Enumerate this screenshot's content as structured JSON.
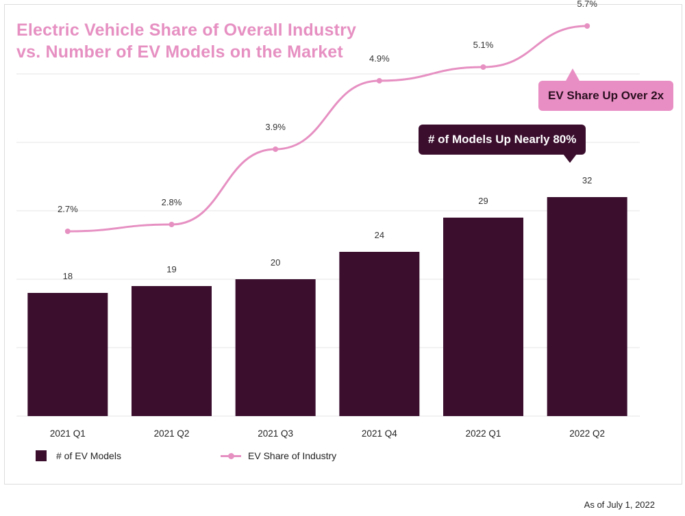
{
  "title": {
    "line1": "Electric Vehicle Share of Overall Industry",
    "line2": "vs. Number of EV Models on the Market"
  },
  "callouts": {
    "share": "EV Share Up Over 2x",
    "models": "# of Models Up Nearly 80%"
  },
  "legend": {
    "bars": "# of EV Models",
    "line": "EV Share of Industry"
  },
  "footnote": "As of July 1, 2022",
  "colors": {
    "bar": "#3b0e2e",
    "line": "#e690c2",
    "title": "#e690c2",
    "grid": "#e6e6e6"
  },
  "chart_data": {
    "type": "bar",
    "categories": [
      "2021 Q1",
      "2021 Q2",
      "2021 Q3",
      "2021 Q4",
      "2022 Q1",
      "2022 Q2"
    ],
    "series": [
      {
        "name": "# of EV Models",
        "type": "bar",
        "values": [
          18,
          19,
          20,
          24,
          29,
          32
        ],
        "labels": [
          "18",
          "19",
          "20",
          "24",
          "29",
          "32"
        ]
      },
      {
        "name": "EV Share of Industry",
        "type": "line",
        "values": [
          2.7,
          2.8,
          3.9,
          4.9,
          5.1,
          5.7
        ],
        "labels": [
          "2.7%",
          "2.8%",
          "3.9%",
          "4.9%",
          "5.1%",
          "5.7%"
        ]
      }
    ],
    "ylim": [
      0,
      50
    ],
    "y2lim": [
      0,
      6
    ],
    "grid": true,
    "legend_position": "bottom-left"
  }
}
